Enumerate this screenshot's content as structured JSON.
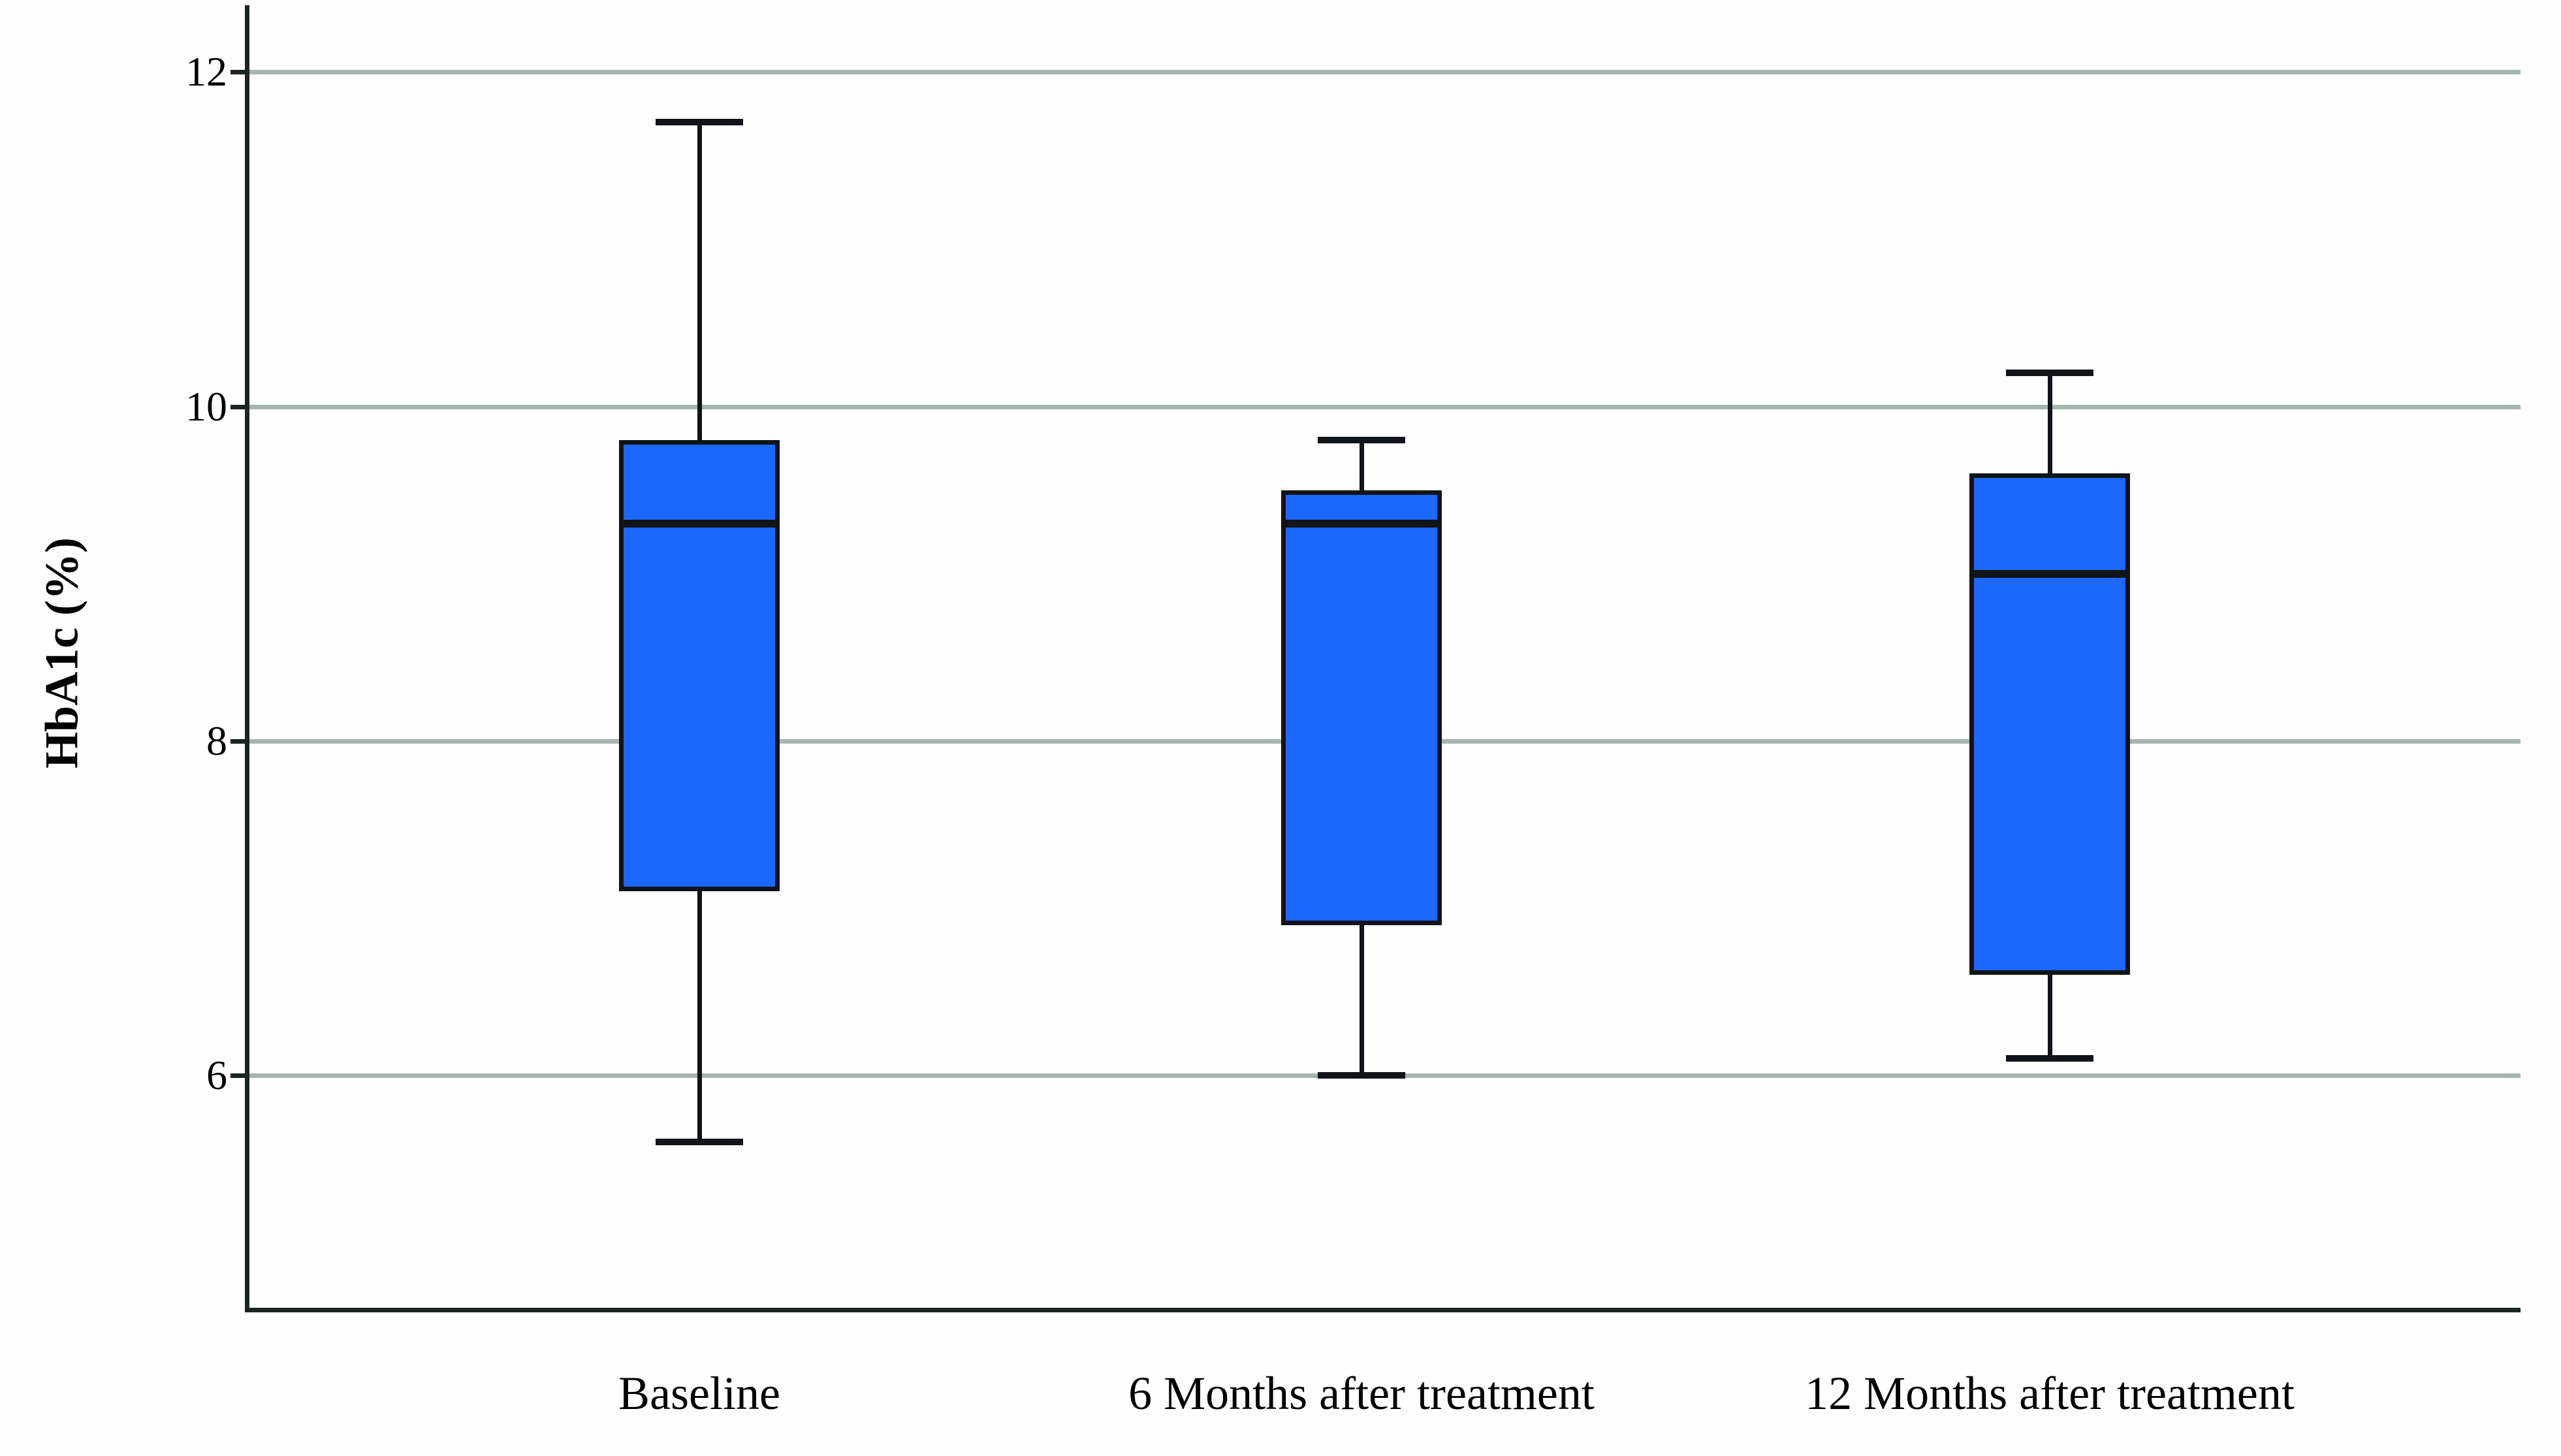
{
  "chart_data": {
    "type": "box",
    "title": "",
    "xlabel": "",
    "ylabel": "HbA1c (%)",
    "categories": [
      "Baseline",
      "6 Months after treatment",
      "12 Months after treatment"
    ],
    "series": [
      {
        "name": "Baseline",
        "min": 5.6,
        "q1": 7.1,
        "median": 9.3,
        "q3": 9.8,
        "max": 11.7
      },
      {
        "name": "6 Months after treatment",
        "min": 6.0,
        "q1": 6.9,
        "median": 9.3,
        "q3": 9.5,
        "max": 9.8
      },
      {
        "name": "12 Months after treatment",
        "min": 6.1,
        "q1": 6.6,
        "median": 9.0,
        "q3": 9.6,
        "max": 10.2
      }
    ],
    "y_ticks": [
      6,
      8,
      10,
      12
    ],
    "ylim": [
      4.61,
      12.4
    ],
    "grid": "horizontal-only",
    "legend": "none",
    "colors": {
      "box_fill": "#1c68fc",
      "box_stroke": "#101418",
      "gridline": "#a7b5af",
      "axis": "#1c2522",
      "text": "#000000",
      "background": "#fefefe"
    }
  }
}
